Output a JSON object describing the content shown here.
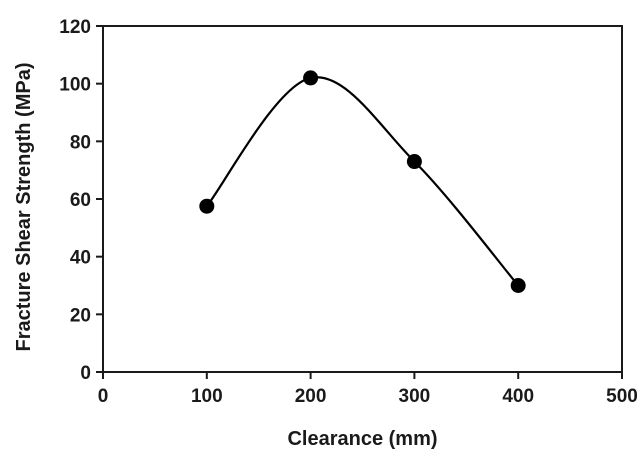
{
  "chart_data": {
    "type": "scatter",
    "title": "",
    "xlabel": "Clearance (mm)",
    "ylabel": "Fracture Shear Strength (MPa)",
    "xlim": [
      0,
      500
    ],
    "ylim": [
      0,
      120
    ],
    "xticks": [
      0,
      100,
      200,
      300,
      400,
      500
    ],
    "yticks": [
      0,
      20,
      40,
      60,
      80,
      100,
      120
    ],
    "grid": false,
    "smooth_line": true,
    "series": [
      {
        "x": [
          100,
          200,
          300,
          400
        ],
        "y": [
          57.5,
          102,
          73,
          30
        ]
      }
    ],
    "colors": {
      "marker": "#000000",
      "line": "#000000",
      "axis": "#1a1a1a"
    }
  }
}
